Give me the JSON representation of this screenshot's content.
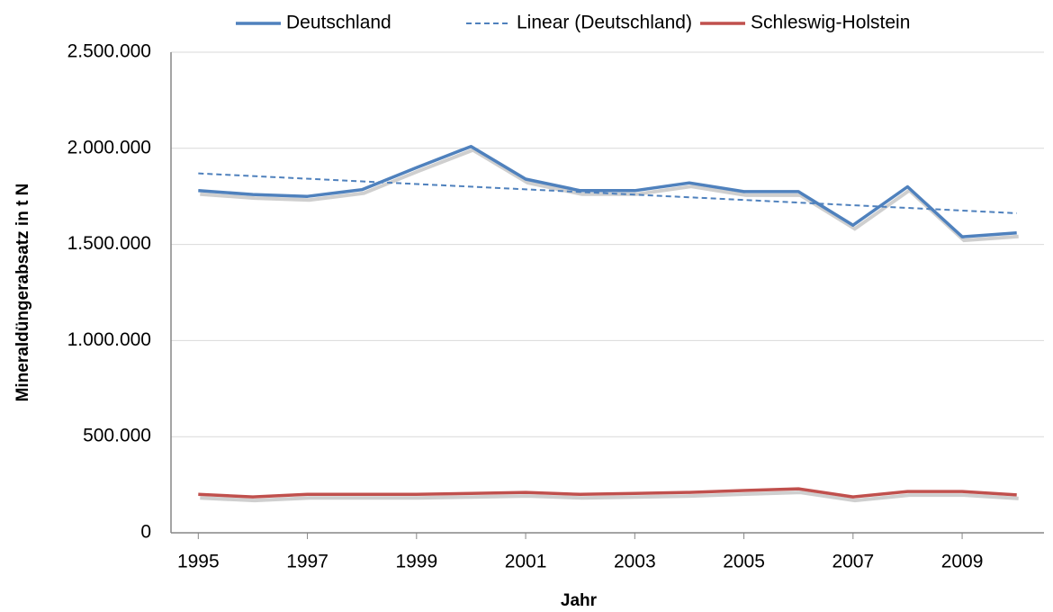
{
  "chart_data": {
    "type": "line",
    "x_label": "Jahr",
    "y_label": "Mineraldüngerabsatz in t N",
    "x": [
      1995,
      1996,
      1997,
      1998,
      1999,
      2000,
      2001,
      2002,
      2003,
      2004,
      2005,
      2006,
      2007,
      2008,
      2009,
      2010
    ],
    "series": [
      {
        "name": "Deutschland",
        "color": "#4f81bd",
        "values": [
          1780000,
          1760000,
          1750000,
          1785000,
          1900000,
          2010000,
          1840000,
          1780000,
          1780000,
          1820000,
          1775000,
          1775000,
          1600000,
          1800000,
          1540000,
          1560000
        ],
        "trendline": {
          "name": "Linear (Deutschland)",
          "kind": "linear",
          "style": "dashed"
        }
      },
      {
        "name": "Schleswig-Holstein",
        "color": "#c0504d",
        "values": [
          200000,
          187000,
          200000,
          200000,
          200000,
          205000,
          210000,
          200000,
          205000,
          210000,
          220000,
          229000,
          187000,
          215000,
          215000,
          197000
        ]
      }
    ],
    "xlim": [
      1994.5,
      2010.5
    ],
    "xticks": [
      1995,
      1997,
      1999,
      2001,
      2003,
      2005,
      2007,
      2009
    ],
    "ylim": [
      0,
      2500000
    ],
    "yticks": [
      0,
      {
        "value": 500000,
        "label": "500.000"
      },
      {
        "value": 1000000,
        "label": "1.000.000"
      },
      {
        "value": 1500000,
        "label": "1.500.000"
      },
      {
        "value": 2000000,
        "label": "2.000.000"
      },
      {
        "value": 2500000,
        "label": "2.500.000"
      }
    ],
    "grid": true,
    "legend": "top"
  }
}
